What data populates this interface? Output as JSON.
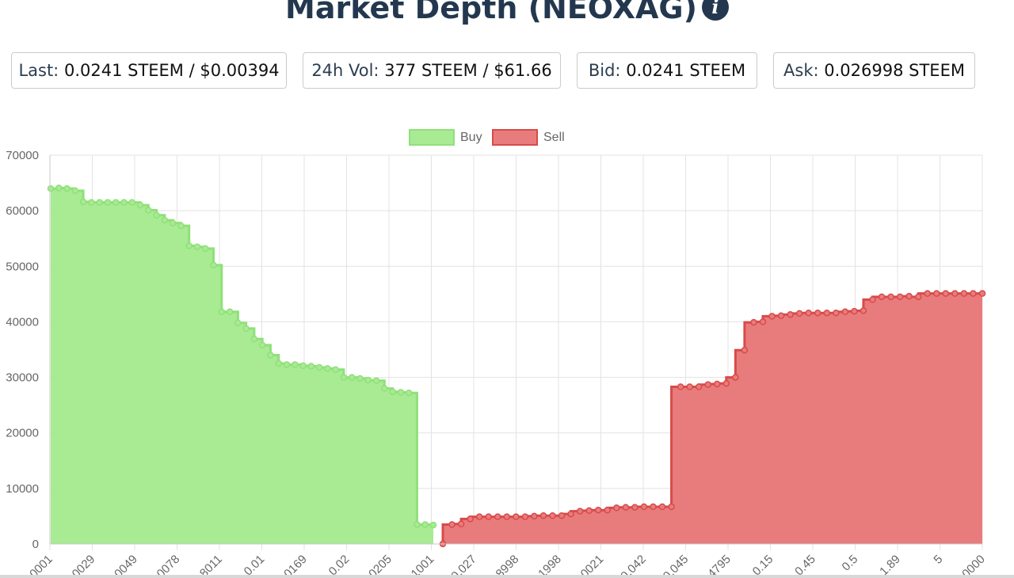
{
  "page": {
    "title": "Market Depth (NEOXAG)",
    "info_icon": "info-circle-icon"
  },
  "stats": [
    {
      "label": "Last:",
      "value": "0.0241 STEEM / $0.00394"
    },
    {
      "label": "24h Vol:",
      "value": "377 STEEM / $61.66"
    },
    {
      "label": "Bid:",
      "value": "0.0241 STEEM"
    },
    {
      "label": "Ask:",
      "value": "0.026998 STEEM"
    }
  ],
  "chart_data": {
    "type": "area",
    "legend_position": "top-center",
    "grid": true,
    "ylim": [
      0,
      70000
    ],
    "y_ticks": [
      "0",
      "10000",
      "20000",
      "30000",
      "40000",
      "50000",
      "60000",
      "70000"
    ],
    "x_tick_labels": [
      "0001",
      "0029",
      "0049",
      "0078",
      "8011",
      "0.01",
      "0169",
      "0.02",
      "0205",
      "1001",
      "0.027",
      "8998",
      "1998",
      "0021",
      "0.042",
      "0.045",
      "4795",
      "0.15",
      "0.45",
      "0.5",
      "1.89",
      "5",
      "0000"
    ],
    "series": [
      {
        "name": "Buy",
        "color": "#90e07a",
        "fill": "#a8eb93",
        "values": [
          64000,
          64100,
          64000,
          63600,
          61600,
          61500,
          61500,
          61500,
          61500,
          61500,
          61500,
          61000,
          60100,
          59200,
          58300,
          57800,
          57300,
          53700,
          53500,
          53200,
          50200,
          41800,
          41800,
          39800,
          38800,
          36900,
          35800,
          34000,
          32500,
          32300,
          32300,
          32100,
          32000,
          31800,
          31600,
          31400,
          30000,
          30000,
          29800,
          29500,
          29400,
          28000,
          27400,
          27300,
          27200,
          3500,
          3500,
          3400
        ]
      },
      {
        "name": "Sell",
        "color": "#d94a4a",
        "fill": "#e87c7c",
        "values": [
          0,
          3500,
          3600,
          4500,
          4900,
          4900,
          4900,
          4900,
          4900,
          4900,
          5000,
          5100,
          5100,
          5100,
          5400,
          5900,
          6000,
          6100,
          6100,
          6500,
          6600,
          6600,
          6700,
          6700,
          6700,
          6700,
          28300,
          28300,
          28300,
          28700,
          28800,
          28900,
          30000,
          34900,
          39900,
          40000,
          41000,
          41100,
          41300,
          41500,
          41600,
          41600,
          41600,
          41600,
          41800,
          41900,
          42000,
          44000,
          44500,
          44500,
          44500,
          44600,
          44500,
          45100,
          45100,
          45100,
          45100,
          45100,
          45100,
          45100
        ]
      }
    ]
  }
}
